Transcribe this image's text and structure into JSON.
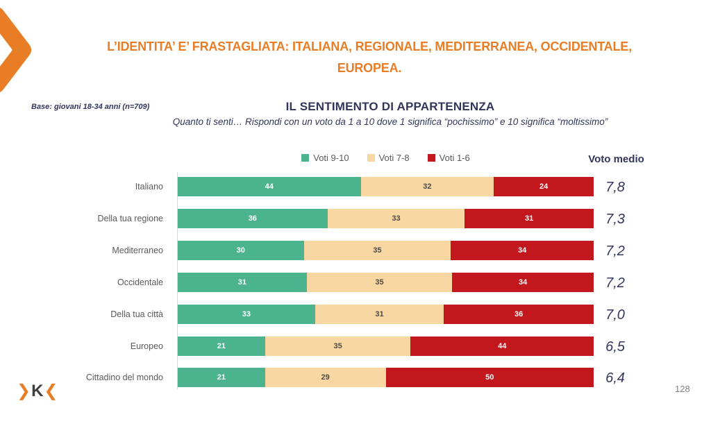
{
  "slide": {
    "title_line1": "L’IDENTITA’ E’ FRASTAGLIATA: ITALIANA, REGIONALE, MEDITERRANEA, OCCIDENTALE,",
    "title_line2": "EUROPEA.",
    "base_note": "Base: giovani 18-34 anni (n=709)",
    "page_number": "128",
    "logo": {
      "left_chevron": "❯",
      "letter": "K",
      "right_chevron": "❮"
    }
  },
  "chart": {
    "title": "IL SENTIMENTO DI APPARTENENZA",
    "subtitle": "Quanto ti senti… Rispondi con un voto da 1 a 10 dove 1 significa “pochissimo” e 10 significa “moltissimo”",
    "voto_medio_header": "Voto medio"
  },
  "chart_data": {
    "type": "bar",
    "orientation": "horizontal",
    "stacked": true,
    "x_range_percent": [
      0,
      100
    ],
    "legend_position": "top-center",
    "grid": false,
    "categories": [
      "Italiano",
      "Della tua regione",
      "Mediterraneo",
      "Occidentale",
      "Della tua città",
      "Europeo",
      "Cittadino del mondo"
    ],
    "series": [
      {
        "name": "Voti 9-10",
        "color": "#4BB48E",
        "label_color": "#FFFFFF",
        "values": [
          44,
          36,
          30,
          31,
          33,
          21,
          21
        ]
      },
      {
        "name": "Voti 7-8",
        "color": "#F9D7A2",
        "label_color": "#4A4A4A",
        "values": [
          32,
          33,
          35,
          35,
          31,
          35,
          29
        ]
      },
      {
        "name": "Voti 1-6",
        "color": "#C2171D",
        "label_color": "#FFFFFF",
        "values": [
          24,
          31,
          34,
          34,
          36,
          44,
          50
        ]
      }
    ],
    "voto_medio_values": [
      "7,8",
      "7,3",
      "7,2",
      "7,2",
      "7,0",
      "6,5",
      "6,4"
    ]
  },
  "colors": {
    "orange": "#E87D26",
    "navy": "#31355B",
    "green": "#4BB48E",
    "tan": "#F9D7A2",
    "red": "#C2171D",
    "gray-text": "#595959",
    "page-gray": "#808080",
    "axis-gray": "#D9D9D9",
    "logo-dark": "#3E3E3E"
  }
}
